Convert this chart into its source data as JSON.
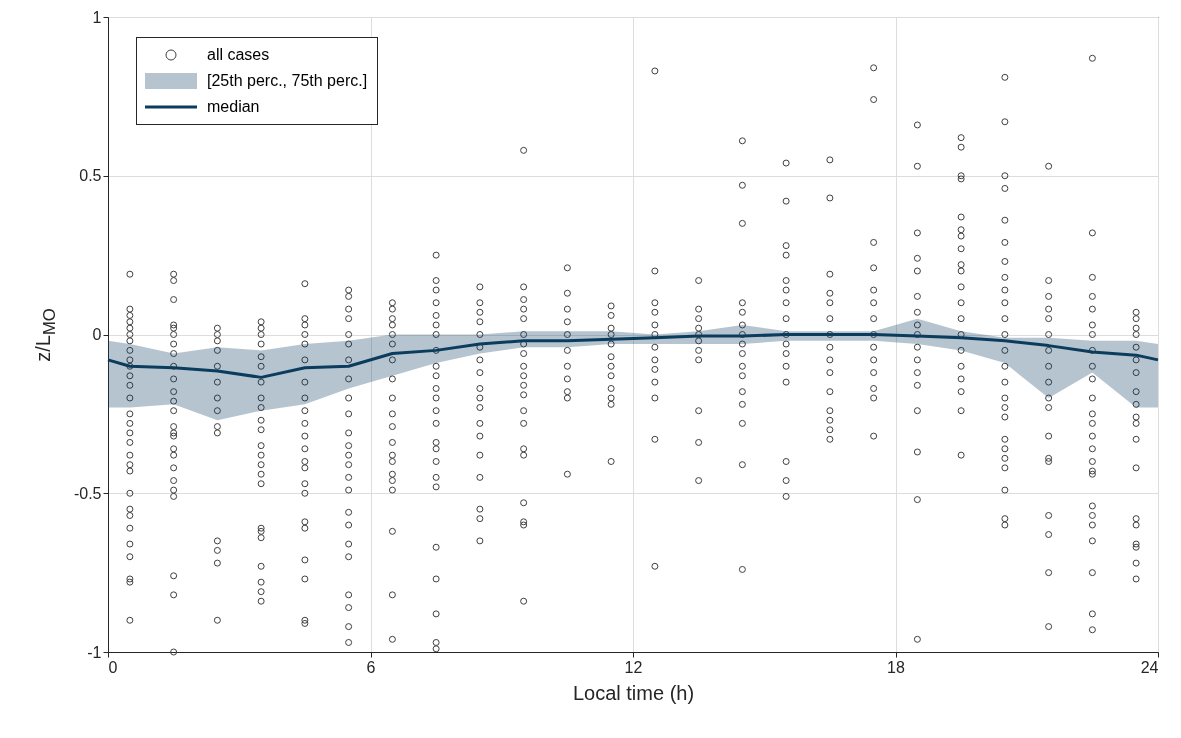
{
  "chart_data": {
    "type": "scatter",
    "xlabel": "Local time (h)",
    "ylabel": "z/L$_{MO}$",
    "xlim": [
      0,
      24
    ],
    "ylim": [
      -1,
      1
    ],
    "xticks": [
      0,
      6,
      12,
      18,
      24
    ],
    "yticks": [
      -1,
      -0.5,
      0,
      0.5,
      1
    ],
    "grid": true,
    "legend": "top left",
    "annotations": [
      "[25th perc., 75th perc.]"
    ],
    "line_style": "solid",
    "series": [
      {
        "name": "all cases",
        "color": "#404040",
        "marker": "circle",
        "x": [
          0.5,
          0.5,
          0.5,
          0.5,
          0.5,
          0.5,
          0.5,
          0.5,
          0.5,
          0.5,
          0.5,
          0.5,
          0.5,
          0.5,
          0.5,
          0.5,
          0.5,
          0.5,
          0.5,
          0.5,
          0.5,
          0.5,
          0.5,
          0.5,
          0.5,
          0.5,
          0.5,
          0.5,
          0.5,
          1.5,
          1.5,
          1.5,
          1.5,
          1.5,
          1.5,
          1.5,
          1.5,
          1.5,
          1.5,
          1.5,
          1.5,
          1.5,
          1.5,
          1.5,
          1.5,
          1.5,
          1.5,
          1.5,
          1.5,
          1.5,
          1.5,
          1.5,
          1.5,
          1.5,
          2.5,
          2.5,
          2.5,
          2.5,
          2.5,
          2.5,
          2.5,
          2.5,
          2.5,
          2.5,
          2.5,
          2.5,
          2.5,
          2.5,
          3.5,
          3.5,
          3.5,
          3.5,
          3.5,
          3.5,
          3.5,
          3.5,
          3.5,
          3.5,
          3.5,
          3.5,
          3.5,
          3.5,
          3.5,
          3.5,
          3.5,
          3.5,
          3.5,
          3.5,
          3.5,
          3.5,
          3.5,
          4.5,
          4.5,
          4.5,
          4.5,
          4.5,
          4.5,
          4.5,
          4.5,
          4.5,
          4.5,
          4.5,
          4.5,
          4.5,
          4.5,
          4.5,
          4.5,
          4.5,
          4.5,
          4.5,
          4.5,
          4.5,
          4.5,
          5.5,
          5.5,
          5.5,
          5.5,
          5.5,
          5.5,
          5.5,
          5.5,
          5.5,
          5.5,
          5.5,
          5.5,
          5.5,
          5.5,
          5.5,
          5.5,
          5.5,
          5.5,
          5.5,
          5.5,
          5.5,
          5.5,
          5.5,
          5.5,
          6.5,
          6.5,
          6.5,
          6.5,
          6.5,
          6.5,
          6.5,
          6.5,
          6.5,
          6.5,
          6.5,
          6.5,
          6.5,
          6.5,
          6.5,
          6.5,
          6.5,
          6.5,
          6.5,
          6.5,
          7.5,
          7.5,
          7.5,
          7.5,
          7.5,
          7.5,
          7.5,
          7.5,
          7.5,
          7.5,
          7.5,
          7.5,
          7.5,
          7.5,
          7.5,
          7.5,
          7.5,
          7.5,
          7.5,
          7.5,
          7.5,
          7.5,
          7.5,
          7.5,
          8.5,
          8.5,
          8.5,
          8.5,
          8.5,
          8.5,
          8.5,
          8.5,
          8.5,
          8.5,
          8.5,
          8.5,
          8.5,
          8.5,
          8.5,
          8.5,
          8.5,
          8.5,
          9.5,
          9.5,
          9.5,
          9.5,
          9.5,
          9.5,
          9.5,
          9.5,
          9.5,
          9.5,
          9.5,
          9.5,
          9.5,
          9.5,
          9.5,
          9.5,
          9.5,
          9.5,
          9.5,
          9.5,
          10.5,
          10.5,
          10.5,
          10.5,
          10.5,
          10.5,
          10.5,
          10.5,
          10.5,
          10.5,
          10.5,
          11.5,
          11.5,
          11.5,
          11.5,
          11.5,
          11.5,
          11.5,
          11.5,
          11.5,
          11.5,
          11.5,
          11.5,
          12.5,
          12.5,
          12.5,
          12.5,
          12.5,
          12.5,
          12.5,
          12.5,
          12.5,
          12.5,
          12.5,
          12.5,
          12.5,
          13.5,
          13.5,
          13.5,
          13.5,
          13.5,
          13.5,
          13.5,
          13.5,
          13.5,
          13.5,
          13.5,
          14.5,
          14.5,
          14.5,
          14.5,
          14.5,
          14.5,
          14.5,
          14.5,
          14.5,
          14.5,
          14.5,
          14.5,
          14.5,
          14.5,
          14.5,
          14.5,
          15.5,
          15.5,
          15.5,
          15.5,
          15.5,
          15.5,
          15.5,
          15.5,
          15.5,
          15.5,
          15.5,
          15.5,
          15.5,
          15.5,
          15.5,
          15.5,
          16.5,
          16.5,
          16.5,
          16.5,
          16.5,
          16.5,
          16.5,
          16.5,
          16.5,
          16.5,
          16.5,
          16.5,
          16.5,
          16.5,
          16.5,
          17.5,
          17.5,
          17.5,
          17.5,
          17.5,
          17.5,
          17.5,
          17.5,
          17.5,
          17.5,
          17.5,
          17.5,
          17.5,
          17.5,
          18.5,
          18.5,
          18.5,
          18.5,
          18.5,
          18.5,
          18.5,
          18.5,
          18.5,
          18.5,
          18.5,
          18.5,
          18.5,
          18.5,
          18.5,
          18.5,
          18.5,
          19.5,
          19.5,
          19.5,
          19.5,
          19.5,
          19.5,
          19.5,
          19.5,
          19.5,
          19.5,
          19.5,
          19.5,
          19.5,
          19.5,
          19.5,
          19.5,
          19.5,
          19.5,
          19.5,
          19.5,
          20.5,
          20.5,
          20.5,
          20.5,
          20.5,
          20.5,
          20.5,
          20.5,
          20.5,
          20.5,
          20.5,
          20.5,
          20.5,
          20.5,
          20.5,
          20.5,
          20.5,
          20.5,
          20.5,
          20.5,
          20.5,
          20.5,
          20.5,
          20.5,
          20.5,
          21.5,
          21.5,
          21.5,
          21.5,
          21.5,
          21.5,
          21.5,
          21.5,
          21.5,
          21.5,
          21.5,
          21.5,
          21.5,
          21.5,
          21.5,
          21.5,
          21.5,
          21.5,
          22.5,
          22.5,
          22.5,
          22.5,
          22.5,
          22.5,
          22.5,
          22.5,
          22.5,
          22.5,
          22.5,
          22.5,
          22.5,
          22.5,
          22.5,
          22.5,
          22.5,
          22.5,
          22.5,
          22.5,
          22.5,
          22.5,
          22.5,
          22.5,
          22.5,
          23.5,
          23.5,
          23.5,
          23.5,
          23.5,
          23.5,
          23.5,
          23.5,
          23.5,
          23.5,
          23.5,
          23.5,
          23.5,
          23.5,
          23.5,
          23.5,
          23.5,
          23.5,
          23.5
        ],
        "values": [
          0.19,
          0.08,
          0.06,
          0.04,
          0.02,
          0.0,
          -0.02,
          -0.05,
          -0.08,
          -0.1,
          -0.13,
          -0.16,
          -0.2,
          -0.25,
          -0.28,
          -0.31,
          -0.34,
          -0.38,
          -0.41,
          -0.43,
          -0.5,
          -0.55,
          -0.57,
          -0.61,
          -0.66,
          -0.7,
          -0.77,
          -0.78,
          -0.9,
          0.19,
          0.17,
          0.11,
          0.03,
          0.02,
          0.0,
          -0.03,
          -0.06,
          -0.1,
          -0.14,
          -0.18,
          -0.21,
          -0.24,
          -0.29,
          -0.31,
          -0.32,
          -0.36,
          -0.38,
          -0.42,
          -0.46,
          -0.49,
          -0.51,
          -0.76,
          -0.82,
          -1.0,
          0.02,
          0.0,
          -0.02,
          -0.05,
          -0.1,
          -0.15,
          -0.2,
          -0.24,
          -0.29,
          -0.31,
          -0.65,
          -0.68,
          -0.72,
          -0.9,
          0.04,
          0.02,
          0.0,
          -0.03,
          -0.07,
          -0.1,
          -0.15,
          -0.2,
          -0.23,
          -0.27,
          -0.3,
          -0.35,
          -0.38,
          -0.41,
          -0.44,
          -0.47,
          -0.61,
          -0.62,
          -0.64,
          -0.73,
          -0.78,
          -0.81,
          -0.84,
          0.16,
          0.05,
          0.03,
          0.0,
          -0.03,
          -0.08,
          -0.15,
          -0.2,
          -0.24,
          -0.28,
          -0.32,
          -0.36,
          -0.4,
          -0.42,
          -0.47,
          -0.5,
          -0.59,
          -0.61,
          -0.71,
          -0.77,
          -0.9,
          -0.91,
          0.14,
          0.12,
          0.08,
          0.05,
          0.0,
          -0.03,
          -0.08,
          -0.14,
          -0.2,
          -0.25,
          -0.31,
          -0.35,
          -0.38,
          -0.41,
          -0.45,
          -0.49,
          -0.56,
          -0.6,
          -0.66,
          -0.7,
          -0.82,
          -0.86,
          -0.92,
          -0.97,
          0.1,
          0.08,
          0.05,
          0.03,
          0.0,
          -0.03,
          -0.08,
          -0.14,
          -0.2,
          -0.25,
          -0.29,
          -0.34,
          -0.38,
          -0.4,
          -0.44,
          -0.46,
          -0.49,
          -0.62,
          -0.82,
          -0.96,
          0.25,
          0.17,
          0.14,
          0.1,
          0.06,
          0.03,
          0.0,
          -0.05,
          -0.1,
          -0.13,
          -0.17,
          -0.2,
          -0.24,
          -0.28,
          -0.34,
          -0.36,
          -0.4,
          -0.45,
          -0.48,
          -0.67,
          -0.77,
          -0.88,
          -0.97,
          -0.99,
          0.15,
          0.1,
          0.07,
          0.04,
          0.0,
          -0.04,
          -0.08,
          -0.12,
          -0.17,
          -0.2,
          -0.23,
          -0.28,
          -0.32,
          -0.38,
          -0.45,
          -0.55,
          -0.58,
          -0.65,
          0.58,
          0.15,
          0.11,
          0.08,
          0.05,
          0.0,
          -0.03,
          -0.06,
          -0.1,
          -0.13,
          -0.16,
          -0.19,
          -0.24,
          -0.28,
          -0.36,
          -0.38,
          -0.53,
          -0.59,
          -0.6,
          -0.84,
          0.21,
          0.13,
          0.08,
          0.04,
          0.0,
          -0.05,
          -0.1,
          -0.14,
          -0.18,
          -0.2,
          -0.44,
          0.09,
          0.06,
          0.02,
          0.0,
          -0.03,
          -0.07,
          -0.1,
          -0.13,
          -0.17,
          -0.2,
          -0.22,
          -0.4,
          0.83,
          0.2,
          0.1,
          0.07,
          0.03,
          0.0,
          -0.04,
          -0.08,
          -0.11,
          -0.15,
          -0.2,
          -0.33,
          -0.73,
          0.17,
          0.08,
          0.05,
          0.02,
          0.0,
          -0.02,
          -0.05,
          -0.08,
          -0.24,
          -0.34,
          -0.46,
          0.61,
          0.47,
          0.35,
          0.1,
          0.07,
          0.03,
          0.0,
          -0.03,
          -0.06,
          -0.1,
          -0.13,
          -0.18,
          -0.22,
          -0.28,
          -0.41,
          -0.74,
          0.54,
          0.42,
          0.28,
          0.25,
          0.17,
          0.14,
          0.1,
          0.05,
          0.0,
          -0.03,
          -0.06,
          -0.1,
          -0.15,
          -0.4,
          -0.46,
          -0.51,
          0.55,
          0.43,
          0.19,
          0.13,
          0.1,
          0.05,
          0.0,
          -0.04,
          -0.08,
          -0.12,
          -0.18,
          -0.24,
          -0.27,
          -0.3,
          -0.33,
          0.84,
          0.74,
          0.29,
          0.21,
          0.14,
          0.1,
          0.05,
          0.0,
          -0.04,
          -0.08,
          -0.12,
          -0.17,
          -0.2,
          -0.32,
          0.66,
          0.53,
          0.32,
          0.24,
          0.2,
          0.12,
          0.07,
          0.03,
          0.0,
          -0.04,
          -0.08,
          -0.12,
          -0.16,
          -0.24,
          -0.37,
          -0.52,
          -0.96,
          0.62,
          0.59,
          0.5,
          0.49,
          0.37,
          0.33,
          0.31,
          0.27,
          0.22,
          0.2,
          0.15,
          0.1,
          0.05,
          0.0,
          -0.05,
          -0.1,
          -0.14,
          -0.18,
          -0.24,
          -0.38,
          0.81,
          0.67,
          0.5,
          0.46,
          0.36,
          0.29,
          0.23,
          0.18,
          0.14,
          0.1,
          0.05,
          0.0,
          -0.05,
          -0.1,
          -0.15,
          -0.2,
          -0.23,
          -0.26,
          -0.33,
          -0.36,
          -0.39,
          -0.42,
          -0.49,
          -0.58,
          -0.6,
          0.53,
          0.17,
          0.12,
          0.08,
          0.05,
          0.0,
          -0.05,
          -0.1,
          -0.15,
          -0.2,
          -0.23,
          -0.32,
          -0.39,
          -0.4,
          -0.57,
          -0.63,
          -0.75,
          -0.92,
          0.87,
          0.32,
          0.18,
          0.12,
          0.08,
          0.03,
          0.0,
          -0.05,
          -0.1,
          -0.14,
          -0.2,
          -0.25,
          -0.28,
          -0.32,
          -0.36,
          -0.4,
          -0.43,
          -0.44,
          -0.54,
          -0.57,
          -0.6,
          -0.65,
          -0.75,
          -0.88,
          -0.93,
          0.07,
          0.05,
          0.02,
          0.0,
          -0.04,
          -0.08,
          -0.12,
          -0.18,
          -0.22,
          -0.26,
          -0.28,
          -0.33,
          -0.42,
          -0.58,
          -0.6,
          -0.66,
          -0.67,
          -0.72,
          -0.77
        ]
      },
      {
        "type": "line",
        "name": "median",
        "color": "#0b3c5d",
        "marker": "none",
        "x": [
          0,
          0.5,
          1.5,
          2.5,
          3.5,
          4.5,
          5.5,
          6.5,
          7.5,
          8.5,
          9.5,
          10.5,
          11.5,
          12.5,
          13.5,
          14.5,
          15.5,
          16.5,
          17.5,
          18.5,
          19.5,
          20.5,
          21.5,
          22.5,
          23.5,
          24
        ],
        "lower": [
          -0.23,
          -0.23,
          -0.22,
          -0.27,
          -0.24,
          -0.22,
          -0.17,
          -0.13,
          -0.09,
          -0.06,
          -0.04,
          -0.04,
          -0.03,
          -0.03,
          -0.03,
          -0.03,
          -0.02,
          -0.02,
          -0.02,
          -0.03,
          -0.05,
          -0.09,
          -0.2,
          -0.12,
          -0.23,
          -0.23
        ],
        "upper": [
          -0.02,
          -0.03,
          -0.06,
          -0.04,
          -0.05,
          -0.03,
          -0.02,
          0.0,
          0.0,
          0.0,
          0.01,
          0.01,
          0.01,
          0.0,
          0.01,
          0.03,
          0.01,
          0.01,
          0.01,
          0.05,
          0.01,
          -0.01,
          -0.01,
          -0.02,
          -0.02,
          -0.03
        ],
        "values": [
          -0.08,
          -0.1,
          -0.105,
          -0.115,
          -0.135,
          -0.105,
          -0.1,
          -0.06,
          -0.05,
          -0.03,
          -0.02,
          -0.02,
          -0.015,
          -0.01,
          -0.005,
          -0.005,
          0.0,
          0.0,
          0.0,
          -0.005,
          -0.01,
          -0.02,
          -0.035,
          -0.055,
          -0.065,
          -0.08
        ]
      }
    ]
  }
}
